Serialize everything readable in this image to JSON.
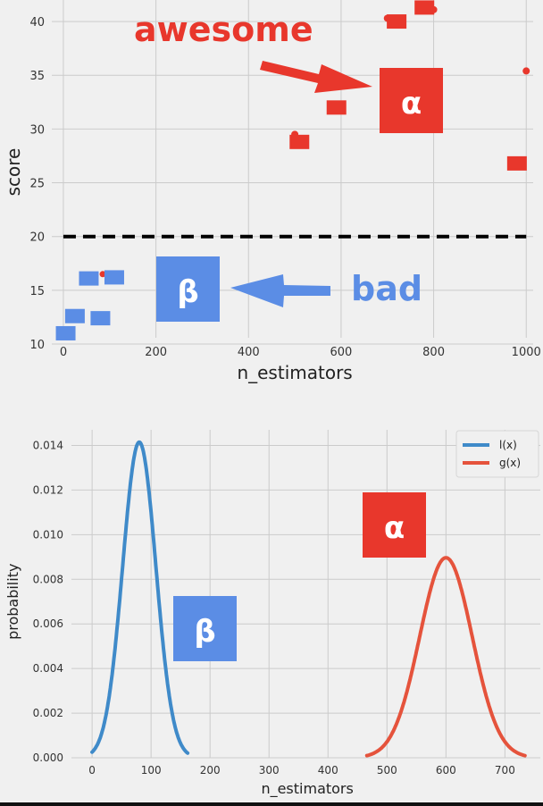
{
  "colors": {
    "background": "#f0f0f0",
    "grid": "#cbcbcb",
    "red": "#e8372c",
    "red_line": "#e5533c",
    "blue": "#5b8de5",
    "blue_line": "#3f8ac9",
    "threshold": "#000000"
  },
  "chart_data": [
    {
      "type": "scatter",
      "title": "",
      "xlabel": "n_estimators",
      "ylabel": "score",
      "xlim": [
        -25,
        1015
      ],
      "ylim": [
        10,
        42
      ],
      "xticks": [
        0,
        200,
        400,
        600,
        800,
        1000
      ],
      "yticks": [
        10,
        15,
        20,
        25,
        30,
        35,
        40
      ],
      "grid": true,
      "threshold": 20,
      "points_good": [
        {
          "x": 500,
          "y": 29.5
        },
        {
          "x": 510,
          "y": 28.8
        },
        {
          "x": 590,
          "y": 32.0
        },
        {
          "x": 700,
          "y": 40.3
        },
        {
          "x": 720,
          "y": 40.0
        },
        {
          "x": 780,
          "y": 41.3
        },
        {
          "x": 800,
          "y": 41.1
        },
        {
          "x": 980,
          "y": 26.8
        },
        {
          "x": 1000,
          "y": 35.4
        }
      ],
      "points_bad": [
        {
          "x": 5,
          "y": 11.0
        },
        {
          "x": 25,
          "y": 12.6
        },
        {
          "x": 55,
          "y": 16.1
        },
        {
          "x": 80,
          "y": 12.4
        },
        {
          "x": 85,
          "y": 16.5
        },
        {
          "x": 110,
          "y": 16.2
        }
      ],
      "annotations": {
        "good_label": "awesome",
        "bad_label": "bad",
        "alpha": "α",
        "beta": "β"
      }
    },
    {
      "type": "line",
      "title": "",
      "xlabel": "n_estimators",
      "ylabel": "probability",
      "xlim": [
        -35,
        760
      ],
      "ylim": [
        0,
        0.0147
      ],
      "xticks": [
        0,
        100,
        200,
        300,
        400,
        500,
        600,
        700
      ],
      "yticks": [
        0.0,
        0.002,
        0.004,
        0.006,
        0.008,
        0.01,
        0.012,
        0.014
      ],
      "ytick_labels": [
        "0.000",
        "0.002",
        "0.004",
        "0.006",
        "0.008",
        "0.010",
        "0.012",
        "0.014"
      ],
      "grid": true,
      "legend_position": "top-right",
      "series": [
        {
          "name": "l(x)",
          "mean": 80,
          "sd": 28.2,
          "x_range": [
            0,
            162
          ],
          "color": "#3f8ac9"
        },
        {
          "name": "g(x)",
          "mean": 600,
          "sd": 44.5,
          "x_range": [
            466,
            734
          ],
          "color": "#e5533c"
        }
      ],
      "annotations": {
        "alpha": "α",
        "beta": "β"
      }
    }
  ]
}
